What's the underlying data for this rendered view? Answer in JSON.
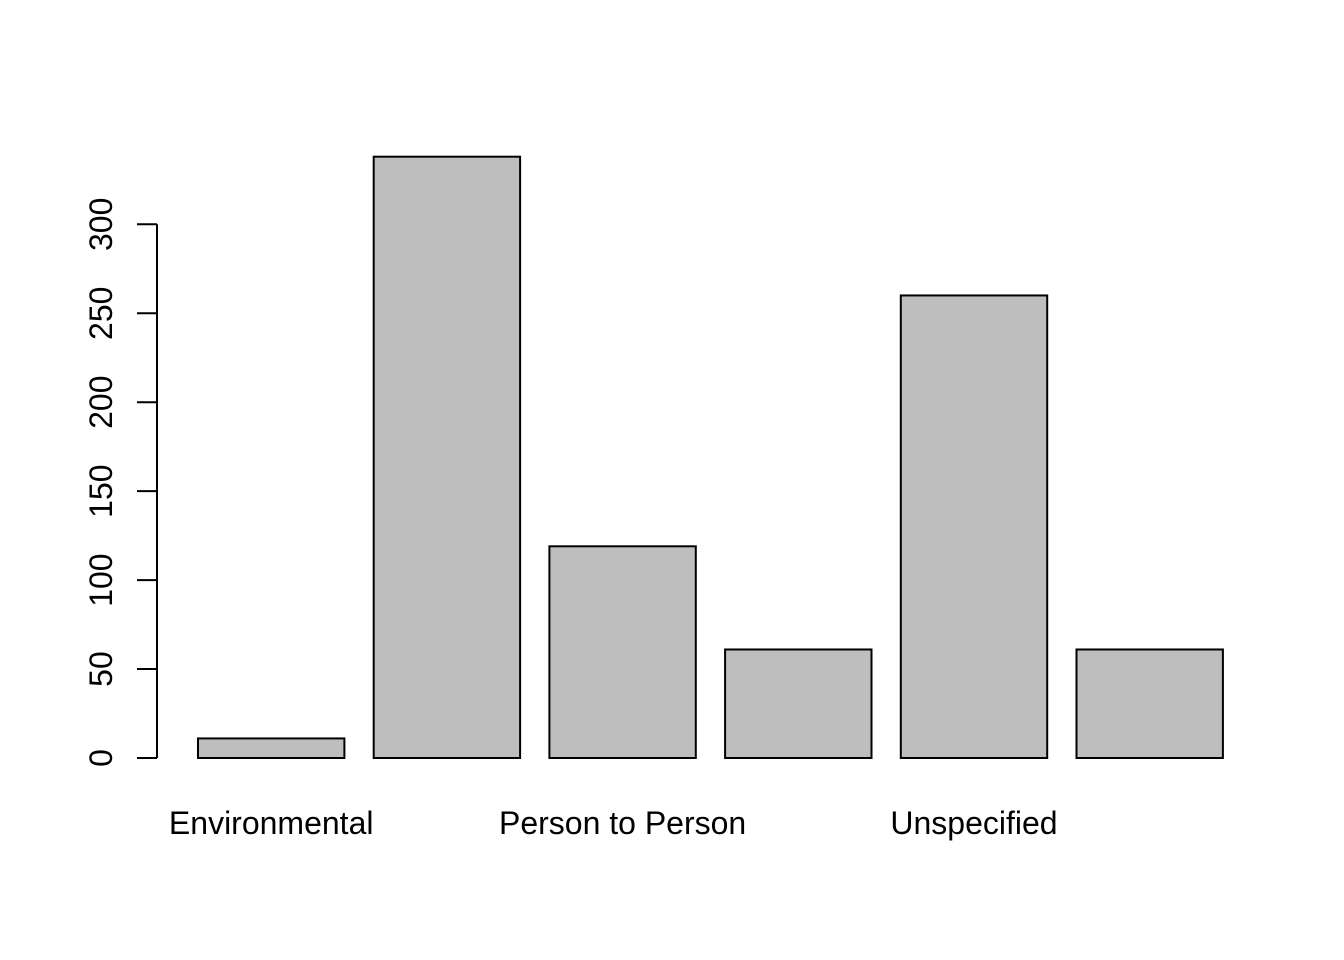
{
  "chart_data": {
    "type": "bar",
    "categories": [
      "Environmental",
      "",
      "Person to Person",
      "",
      "Unspecified",
      ""
    ],
    "values": [
      11,
      338,
      119,
      61,
      260,
      61
    ],
    "title": "",
    "xlabel": "",
    "ylabel": "",
    "yticks": [
      0,
      50,
      100,
      150,
      200,
      250,
      300
    ],
    "ytick_labels": [
      "0",
      "50",
      "100",
      "150",
      "200",
      "250",
      "300"
    ],
    "ylim": [
      0,
      340
    ],
    "grid": false,
    "bar_color": "#bebebe",
    "border_color": "#000000"
  }
}
